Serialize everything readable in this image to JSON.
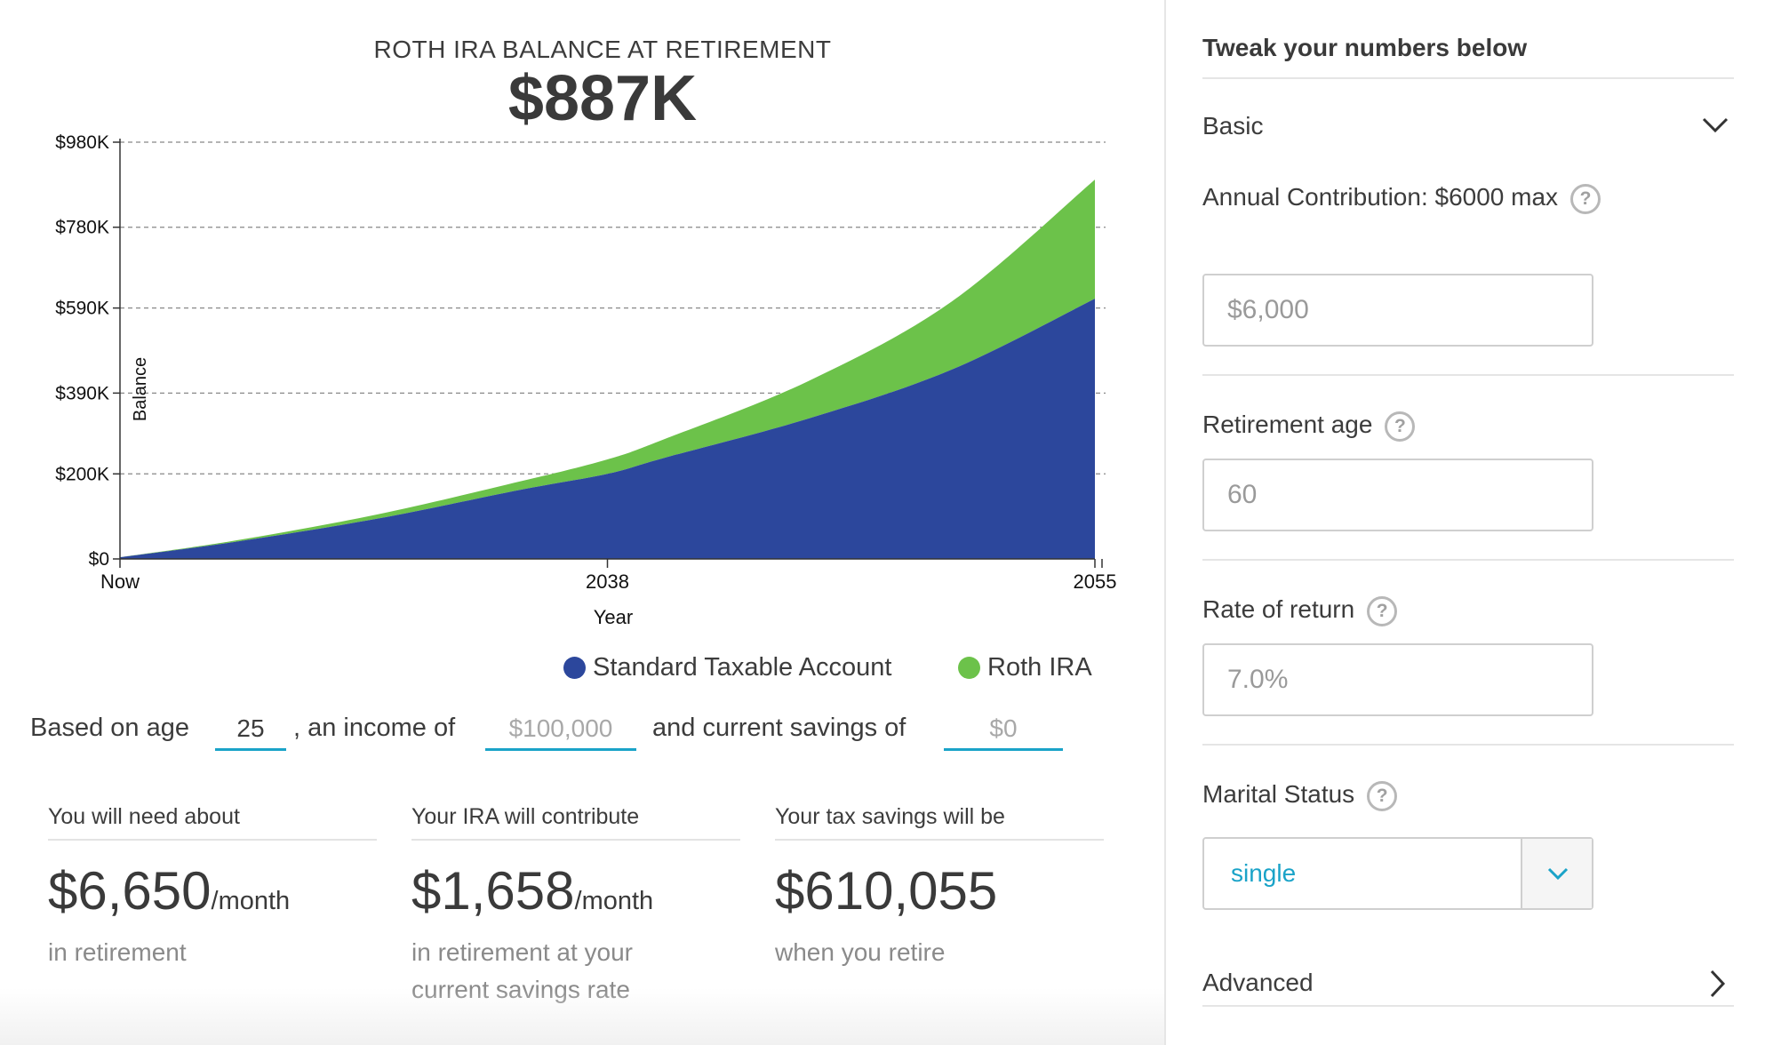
{
  "chart": {
    "title": "ROTH IRA BALANCE AT RETIREMENT",
    "headline": "$887K"
  },
  "chart_data": {
    "type": "area",
    "title": "ROTH IRA BALANCE AT RETIREMENT",
    "xlabel": "Year",
    "ylabel": "Balance",
    "x_tick_labels": [
      "Now",
      "2038",
      "2055"
    ],
    "y_tick_labels": [
      "$0",
      "$200K",
      "$390K",
      "$590K",
      "$780K",
      "$980K"
    ],
    "y_tick_values": [
      0,
      200,
      390,
      590,
      780,
      980
    ],
    "y_unit": "thousand USD",
    "ylim": [
      0,
      980
    ],
    "grid": true,
    "stacked": true,
    "legend_position": "bottom-right",
    "x": [
      2021,
      2025,
      2030,
      2035,
      2038,
      2040,
      2045,
      2050,
      2055
    ],
    "series": [
      {
        "name": "Standard Taxable Account",
        "color": "#2c479c",
        "values": [
          4,
          40,
          95,
          163,
          200,
          238,
          330,
          445,
          612
        ]
      },
      {
        "name": "Roth IRA",
        "color": "#6cc24a",
        "values": [
          0,
          3,
          10,
          20,
          34,
          44,
          88,
          160,
          280
        ]
      }
    ]
  },
  "legend": {
    "items": [
      {
        "label": "Standard Taxable Account",
        "color": "#2c479c"
      },
      {
        "label": "Roth IRA",
        "color": "#6cc24a"
      }
    ]
  },
  "sentence": {
    "part1": "Based on age",
    "age": "25",
    "part2": ", an income of",
    "income": "$100,000",
    "part3": "and current savings of",
    "savings": "$0"
  },
  "stats": [
    {
      "label": "You will need about",
      "value": "$6,650",
      "unit": "/month",
      "sub": "in retirement"
    },
    {
      "label": "Your IRA will contribute",
      "value": "$1,658",
      "unit": "/month",
      "sub": "in retirement at your current savings rate"
    },
    {
      "label": "Your tax savings will be",
      "value": "$610,055",
      "unit": "",
      "sub": "when you retire"
    }
  ],
  "panel": {
    "title": "Tweak your numbers below",
    "basic_label": "Basic",
    "annual_contribution_label": "Annual Contribution: $6000 max",
    "annual_contribution_value": "$6,000",
    "retirement_age_label": "Retirement age",
    "retirement_age_value": "60",
    "rate_of_return_label": "Rate of return",
    "rate_of_return_value": "7.0%",
    "marital_status_label": "Marital Status",
    "marital_status_value": "single",
    "advanced_label": "Advanced",
    "help_glyph": "?"
  },
  "colors": {
    "accent": "#1aa3c8",
    "taxable": "#2c479c",
    "roth": "#6cc24a"
  }
}
